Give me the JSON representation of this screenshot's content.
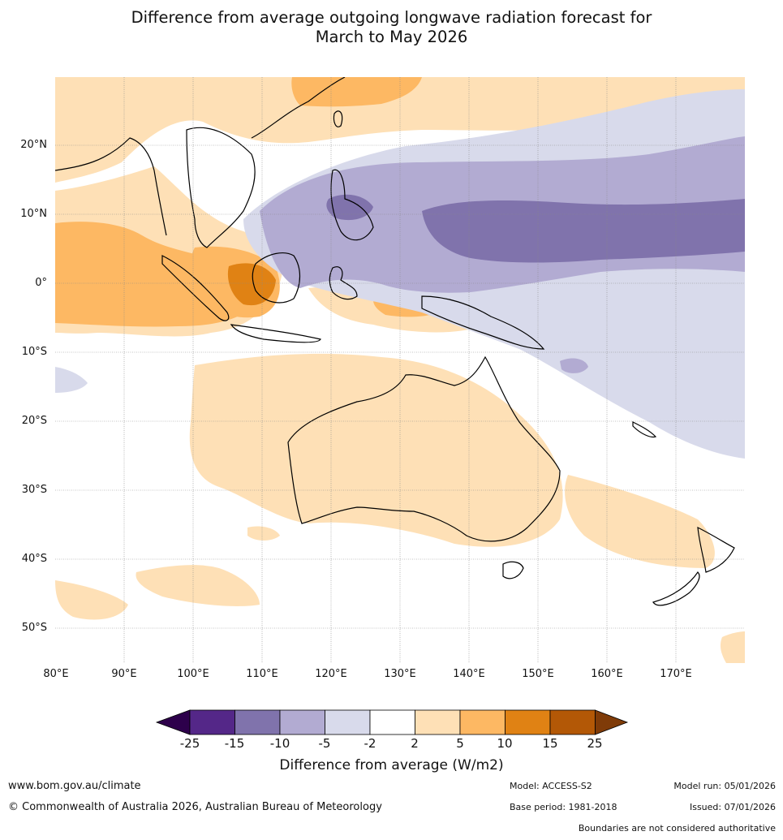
{
  "title": {
    "line1": "Difference from average outgoing longwave radiation forecast for",
    "line2": "March to May 2026"
  },
  "map": {
    "lat_labels": [
      "20°N",
      "10°N",
      "0°",
      "10°S",
      "20°S",
      "30°S",
      "40°S",
      "50°S"
    ],
    "lon_labels": [
      "80°E",
      "90°E",
      "100°E",
      "110°E",
      "120°E",
      "130°E",
      "140°E",
      "150°E",
      "160°E",
      "170°E"
    ],
    "lon_range": [
      80,
      180
    ],
    "lat_range": [
      -55,
      30
    ]
  },
  "colorbar": {
    "ticks": [
      "-25",
      "-15",
      "-10",
      "-5",
      "-2",
      "2",
      "5",
      "10",
      "15",
      "25"
    ],
    "colors": [
      "#2d004b",
      "#542788",
      "#8073ac",
      "#b2abd2",
      "#d8daeb",
      "#ffffff",
      "#fee0b6",
      "#fdb863",
      "#e08214",
      "#b35806",
      "#7f3b08"
    ],
    "label": "Difference from average (W/m2)"
  },
  "footer": {
    "url": "www.bom.gov.au/climate",
    "copyright": "© Commonwealth of Australia 2026, Australian Bureau of Meteorology",
    "model": "Model: ACCESS-S2",
    "base_period": "Base period: 1981-2018",
    "model_run": "Model run: 05/01/2026",
    "issued": "Issued: 07/01/2026",
    "disclaimer": "Boundaries are not considered authoritative"
  }
}
